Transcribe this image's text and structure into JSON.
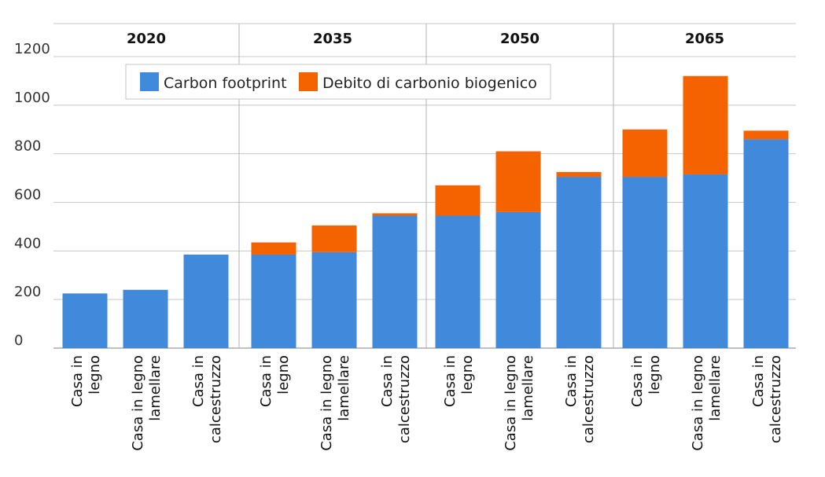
{
  "chart_data": {
    "type": "bar",
    "stacked": true,
    "groups": [
      "2020",
      "2035",
      "2050",
      "2065"
    ],
    "categories": [
      "Casa in legno",
      "Casa in legno lamellare",
      "Casa in calcestruzzo"
    ],
    "category_label_lines": [
      [
        "Casa in",
        "legno"
      ],
      [
        "Casa in legno",
        "lamellare"
      ],
      [
        "Casa in",
        "calcestruzzo"
      ]
    ],
    "series": [
      {
        "name": "Carbon footprint",
        "color": "#4189DB",
        "values": [
          [
            225,
            240,
            385
          ],
          [
            385,
            395,
            545
          ],
          [
            545,
            560,
            705
          ],
          [
            705,
            715,
            860
          ]
        ]
      },
      {
        "name": "Debito di carbonio biogenico",
        "color": "#F56200",
        "values": [
          [
            0,
            0,
            0
          ],
          [
            50,
            110,
            10
          ],
          [
            125,
            250,
            20
          ],
          [
            195,
            405,
            35
          ]
        ]
      }
    ],
    "ylim": [
      0,
      1200
    ],
    "yticks": [
      "0",
      "200",
      "400",
      "600",
      "800",
      "1000",
      "1200"
    ],
    "grid": true,
    "legend_position": "top-left"
  }
}
